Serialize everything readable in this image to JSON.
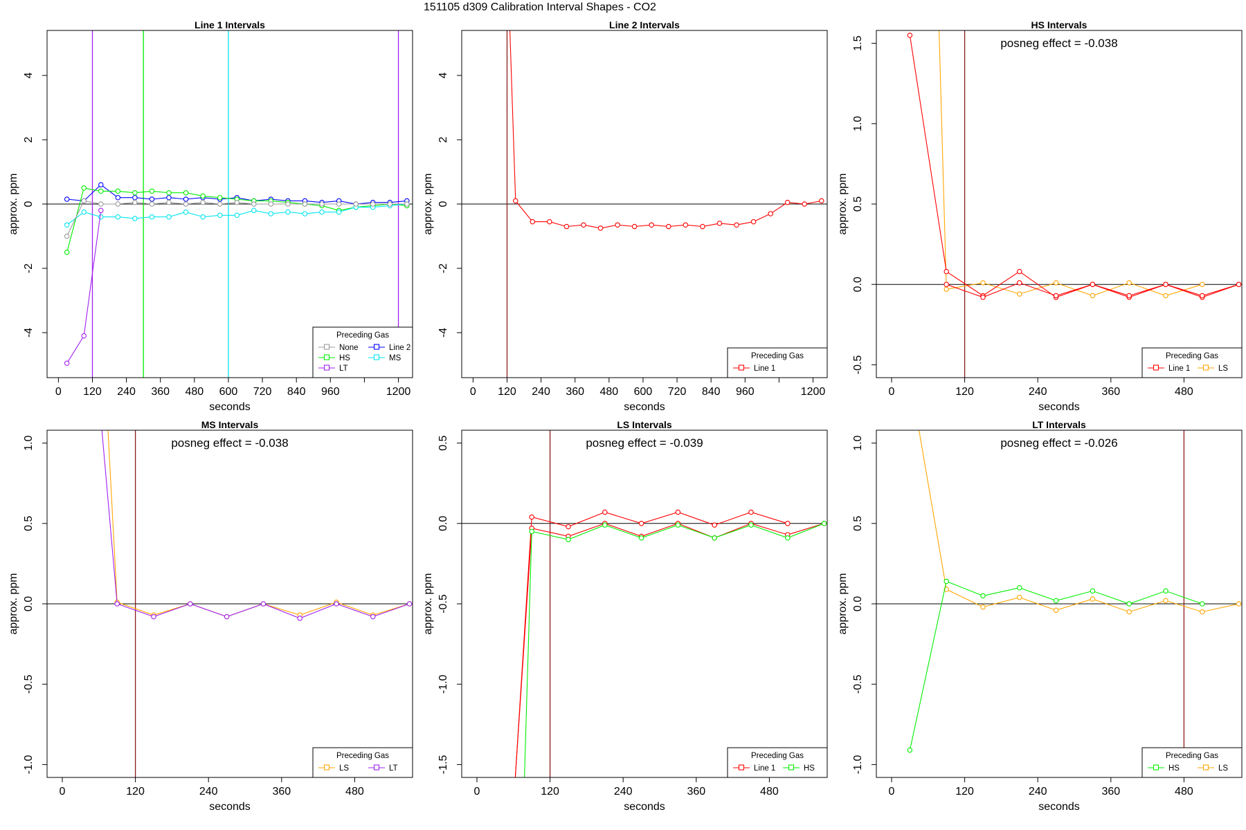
{
  "title": "151105  d309   Calibration Interval Shapes - CO2",
  "colors": {
    "Line 1": "#ff0000",
    "Line 2": "#0000ff",
    "HS": "#00ee00",
    "MS": "#00e5ee",
    "LS": "#ffa500",
    "LT": "#a020f0",
    "None": "#999999",
    "vline": "#8b1a1a",
    "zero": "#000000"
  },
  "chart_data": [
    {
      "type": "line",
      "title": "Line 1 Intervals",
      "xlabel": "seconds",
      "ylabel": "approx. ppm",
      "xlim": [
        -40,
        1250
      ],
      "ylim": [
        -5.4,
        5.4
      ],
      "xticks": [
        0,
        120,
        240,
        360,
        480,
        600,
        720,
        840,
        960,
        1080,
        1200
      ],
      "xticklabels": [
        "0",
        "120",
        "240",
        "360",
        "480",
        "600",
        "720",
        "840",
        "960",
        "",
        "1200"
      ],
      "yticks": [
        -4,
        -2,
        0,
        2,
        4
      ],
      "yticklabels": [
        "-4",
        "-2",
        "0",
        "2",
        "4"
      ],
      "hlines": [
        0
      ],
      "vlines": [
        {
          "x": 120,
          "color": "#a020f0"
        },
        {
          "x": 300,
          "color": "#00ee00"
        },
        {
          "x": 600,
          "color": "#00e5ee"
        },
        {
          "x": 1200,
          "color": "#a020f0"
        }
      ],
      "annotation": "",
      "legend": {
        "title": "Preceding Gas",
        "position": "bottom-right",
        "columns": 2,
        "entries": [
          "None",
          "Line 2",
          "HS",
          "MS",
          "LT"
        ]
      },
      "series": [
        {
          "name": "Line 2",
          "x": [
            30,
            90,
            150,
            210,
            270,
            330,
            390,
            450,
            510,
            570,
            630,
            690,
            750,
            810,
            870,
            930,
            990,
            1050,
            1110,
            1170,
            1230
          ],
          "y": [
            0.15,
            0.1,
            0.6,
            0.2,
            0.2,
            0.15,
            0.2,
            0.15,
            0.2,
            0.15,
            0.2,
            0.1,
            0.15,
            0.1,
            0.1,
            0.05,
            0.1,
            0.0,
            0.05,
            0.05,
            0.1
          ]
        },
        {
          "name": "HS",
          "x": [
            30,
            90,
            150,
            210,
            270,
            330,
            390,
            450,
            510,
            570,
            630,
            690,
            750,
            810,
            870,
            930,
            990,
            1050,
            1110,
            1170,
            1230
          ],
          "y": [
            -1.5,
            0.5,
            0.4,
            0.4,
            0.35,
            0.4,
            0.35,
            0.35,
            0.25,
            0.2,
            0.15,
            0.1,
            0.1,
            0.05,
            0.0,
            -0.05,
            -0.2,
            -0.1,
            -0.05,
            0.0,
            -0.05
          ]
        },
        {
          "name": "MS",
          "x": [
            30,
            90,
            150,
            210,
            270,
            330,
            390,
            450,
            510,
            570,
            630,
            690,
            750,
            810,
            870,
            930,
            990,
            1050,
            1110,
            1170,
            1230
          ],
          "y": [
            -0.65,
            -0.25,
            -0.4,
            -0.4,
            -0.45,
            -0.4,
            -0.4,
            -0.25,
            -0.4,
            -0.35,
            -0.35,
            -0.2,
            -0.3,
            -0.25,
            -0.3,
            -0.25,
            -0.25,
            -0.1,
            -0.1,
            -0.05,
            0.0
          ]
        },
        {
          "name": "None",
          "x": [
            30,
            90,
            150,
            210,
            270,
            330,
            390,
            450,
            510,
            570,
            630,
            690,
            750,
            810,
            870,
            930,
            990,
            1050,
            1110,
            1170,
            1230
          ],
          "y": [
            -1.0,
            0.1,
            0.0,
            0.0,
            0.05,
            0.0,
            0.05,
            0.0,
            0.05,
            0.0,
            0.05,
            0.0,
            0.0,
            0.0,
            0.0,
            0.0,
            0.0,
            0.0,
            0.0,
            0.0,
            0.0
          ]
        },
        {
          "name": "LT",
          "x": [
            30,
            90,
            150
          ],
          "y": [
            -4.95,
            -4.1,
            -0.2
          ]
        }
      ]
    },
    {
      "type": "line",
      "title": "Line 2 Intervals",
      "xlabel": "seconds",
      "ylabel": "approx. ppm",
      "xlim": [
        -40,
        1250
      ],
      "ylim": [
        -5.4,
        5.4
      ],
      "xticks": [
        0,
        120,
        240,
        360,
        480,
        600,
        720,
        840,
        960,
        1080,
        1200
      ],
      "xticklabels": [
        "0",
        "120",
        "240",
        "360",
        "480",
        "600",
        "720",
        "840",
        "960",
        "",
        "1200"
      ],
      "yticks": [
        -4,
        -2,
        0,
        2,
        4
      ],
      "yticklabels": [
        "-4",
        "-2",
        "0",
        "2",
        "4"
      ],
      "hlines": [
        0
      ],
      "vlines": [
        {
          "x": 120,
          "color": "#8b1a1a"
        }
      ],
      "annotation": "",
      "legend": {
        "title": "Preceding Gas",
        "position": "bottom-right",
        "columns": 1,
        "entries": [
          "Line 1"
        ]
      },
      "series": [
        {
          "name": "Line 1",
          "x": [
            150,
            210,
            270,
            330,
            390,
            450,
            510,
            570,
            630,
            690,
            750,
            810,
            870,
            930,
            990,
            1050,
            1110,
            1170,
            1230
          ],
          "y": [
            0.1,
            -0.55,
            -0.55,
            -0.7,
            -0.65,
            -0.75,
            -0.65,
            -0.7,
            -0.65,
            -0.7,
            -0.65,
            -0.7,
            -0.6,
            -0.65,
            -0.55,
            -0.3,
            0.05,
            0.0,
            0.1
          ],
          "lead": {
            "x": 130,
            "y": 5.4
          }
        }
      ]
    },
    {
      "type": "line",
      "title": "HS Intervals",
      "xlabel": "seconds",
      "ylabel": "approx. ppm",
      "xlim": [
        -25,
        575
      ],
      "ylim": [
        -0.58,
        1.58
      ],
      "xticks": [
        0,
        120,
        240,
        360,
        480
      ],
      "xticklabels": [
        "0",
        "120",
        "240",
        "360",
        "480"
      ],
      "yticks": [
        -0.5,
        0.0,
        0.5,
        1.0,
        1.5
      ],
      "yticklabels": [
        "-0.5",
        "0.0",
        "0.5",
        "1.0",
        "1.5"
      ],
      "hlines": [
        0
      ],
      "vlines": [
        {
          "x": 120,
          "color": "#8b1a1a"
        }
      ],
      "annotation": "posneg effect = -0.038",
      "legend": {
        "title": "Preceding Gas",
        "position": "bottom-right",
        "columns": 2,
        "entries": [
          "Line 1",
          "LS"
        ]
      },
      "series": [
        {
          "name": "LS",
          "x": [
            90,
            150,
            210,
            270,
            330,
            390,
            450,
            510
          ],
          "y": [
            -0.03,
            0.01,
            -0.06,
            0.01,
            -0.07,
            0.01,
            -0.07,
            0.0
          ],
          "lead": {
            "x": 78,
            "y": 1.58
          }
        },
        {
          "name": "Line 1",
          "x": [
            30,
            90,
            150,
            210,
            270,
            330,
            390,
            450,
            510,
            570
          ],
          "y": [
            1.55,
            0.08,
            -0.07,
            0.08,
            -0.08,
            0.0,
            -0.08,
            0.0,
            -0.08,
            0.0
          ]
        },
        {
          "name": "Line 1",
          "x": [
            90,
            150,
            210,
            270,
            330,
            390,
            450,
            510,
            570
          ],
          "y": [
            0.0,
            -0.08,
            0.01,
            -0.07,
            0.0,
            -0.07,
            0.0,
            -0.07,
            0.0
          ]
        }
      ]
    },
    {
      "type": "line",
      "title": "MS Intervals",
      "xlabel": "seconds",
      "ylabel": "approx. ppm",
      "xlim": [
        -25,
        575
      ],
      "ylim": [
        -1.08,
        1.08
      ],
      "xticks": [
        0,
        120,
        240,
        360,
        480
      ],
      "xticklabels": [
        "0",
        "120",
        "240",
        "360",
        "480"
      ],
      "yticks": [
        -1.0,
        -0.5,
        0.0,
        0.5,
        1.0
      ],
      "yticklabels": [
        "-1.0",
        "-0.5",
        "0.0",
        "0.5",
        "1.0"
      ],
      "hlines": [
        0
      ],
      "vlines": [
        {
          "x": 120,
          "color": "#8b1a1a"
        }
      ],
      "annotation": "posneg effect = -0.038",
      "legend": {
        "title": "Preceding Gas",
        "position": "bottom-right",
        "columns": 2,
        "entries": [
          "LS",
          "LT"
        ]
      },
      "series": [
        {
          "name": "LS",
          "x": [
            90,
            150,
            210,
            270,
            330,
            390,
            450,
            510,
            570
          ],
          "y": [
            0.01,
            -0.07,
            0.0,
            -0.08,
            0.0,
            -0.07,
            0.01,
            -0.07,
            0.0
          ],
          "lead": {
            "x": 75,
            "y": 1.08
          }
        },
        {
          "name": "LT",
          "x": [
            90,
            150,
            210,
            270,
            330,
            390,
            450,
            510,
            570
          ],
          "y": [
            0.0,
            -0.08,
            0.0,
            -0.08,
            0.0,
            -0.09,
            0.0,
            -0.08,
            0.0
          ],
          "lead": {
            "x": 65,
            "y": 1.08
          }
        }
      ]
    },
    {
      "type": "line",
      "title": "LS Intervals",
      "xlabel": "seconds",
      "ylabel": "approx. ppm",
      "xlim": [
        -25,
        575
      ],
      "ylim": [
        -1.58,
        0.58
      ],
      "xticks": [
        0,
        120,
        240,
        360,
        480
      ],
      "xticklabels": [
        "0",
        "120",
        "240",
        "360",
        "480"
      ],
      "yticks": [
        -1.5,
        -1.0,
        -0.5,
        0.0,
        0.5
      ],
      "yticklabels": [
        "-1.5",
        "-1.0",
        "-0.5",
        "0.0",
        "0.5"
      ],
      "hlines": [
        0
      ],
      "vlines": [
        {
          "x": 120,
          "color": "#8b1a1a"
        }
      ],
      "annotation": "posneg effect = -0.039",
      "legend": {
        "title": "Preceding Gas",
        "position": "bottom-right",
        "columns": 2,
        "entries": [
          "Line 1",
          "HS"
        ]
      },
      "series": [
        {
          "name": "Line 1",
          "x": [
            90,
            150,
            210,
            270,
            330,
            390,
            450,
            510
          ],
          "y": [
            0.04,
            -0.02,
            0.07,
            0.0,
            0.07,
            -0.01,
            0.07,
            0.0
          ],
          "lead": {
            "x": 63,
            "y": -1.58
          }
        },
        {
          "name": "Line 1",
          "x": [
            90,
            150,
            210,
            270,
            330,
            390,
            450,
            510,
            570
          ],
          "y": [
            -0.03,
            -0.08,
            0.0,
            -0.08,
            0.0,
            -0.09,
            0.0,
            -0.07,
            0.0
          ],
          "lead": {
            "x": 63,
            "y": -1.58
          }
        },
        {
          "name": "HS",
          "x": [
            90,
            150,
            210,
            270,
            330,
            390,
            450,
            510,
            570
          ],
          "y": [
            -0.05,
            -0.1,
            -0.01,
            -0.09,
            -0.01,
            -0.09,
            -0.01,
            -0.09,
            0.0
          ],
          "lead": {
            "x": 78,
            "y": -1.58
          }
        }
      ]
    },
    {
      "type": "line",
      "title": "LT Intervals",
      "xlabel": "seconds",
      "ylabel": "approx. ppm",
      "xlim": [
        -25,
        575
      ],
      "ylim": [
        -1.08,
        1.08
      ],
      "xticks": [
        0,
        120,
        240,
        360,
        480
      ],
      "xticklabels": [
        "0",
        "120",
        "240",
        "360",
        "480"
      ],
      "yticks": [
        -1.0,
        -0.5,
        0.0,
        0.5,
        1.0
      ],
      "yticklabels": [
        "-1.0",
        "-0.5",
        "0.0",
        "0.5",
        "1.0"
      ],
      "hlines": [
        0
      ],
      "vlines": [
        {
          "x": 480,
          "color": "#8b1a1a"
        }
      ],
      "annotation": "posneg effect = -0.026",
      "legend": {
        "title": "Preceding Gas",
        "position": "bottom-right",
        "columns": 2,
        "entries": [
          "HS",
          "LS"
        ]
      },
      "series": [
        {
          "name": "LS",
          "x": [
            90,
            150,
            210,
            270,
            330,
            390,
            450,
            510,
            570
          ],
          "y": [
            0.09,
            -0.02,
            0.04,
            -0.04,
            0.03,
            -0.05,
            0.02,
            -0.05,
            0.0
          ],
          "lead": {
            "x": 45,
            "y": 1.08
          }
        },
        {
          "name": "HS",
          "x": [
            30,
            90,
            150,
            210,
            270,
            330,
            390,
            450,
            510
          ],
          "y": [
            -0.91,
            0.14,
            0.05,
            0.1,
            0.02,
            0.08,
            0.0,
            0.08,
            0.0
          ]
        }
      ]
    }
  ]
}
